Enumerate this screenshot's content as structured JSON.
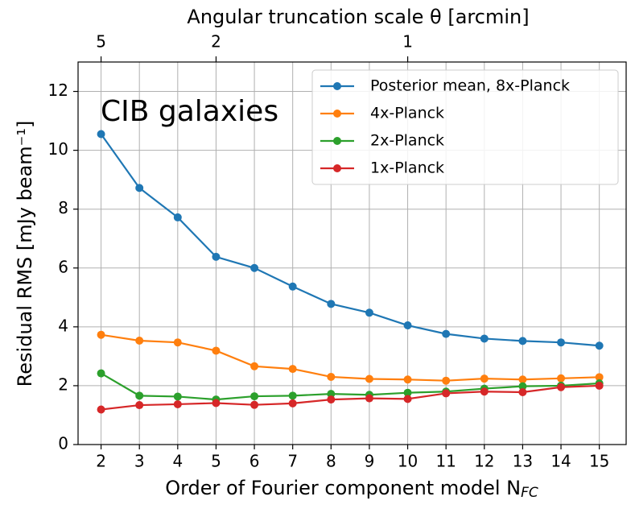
{
  "chart_data": {
    "type": "line",
    "title": "Angular truncation scale θ [arcmin]",
    "xlabel": "Order of Fourier component model N",
    "xlabel_subscript": "FC",
    "ylabel": "Residual RMS [mJy beam⁻¹]",
    "annotation": "CIB galaxies",
    "x": [
      2,
      3,
      4,
      5,
      6,
      7,
      8,
      9,
      10,
      11,
      12,
      13,
      14,
      15
    ],
    "xlim": [
      1.4,
      15.7
    ],
    "xticks": [
      2,
      3,
      4,
      5,
      6,
      7,
      8,
      9,
      10,
      11,
      12,
      13,
      14,
      15
    ],
    "ylim": [
      0,
      13
    ],
    "yticks": [
      0,
      2,
      4,
      6,
      8,
      10,
      12
    ],
    "x2lim": [
      7.143,
      0.637
    ],
    "x2scale": "reciprocal",
    "x2ticks": [
      5,
      2,
      1
    ],
    "grid": true,
    "legend": "upper right",
    "series": [
      {
        "name": "Posterior mean, 8x-Planck",
        "color": "#1f77b4",
        "values": [
          10.55,
          8.72,
          7.72,
          6.38,
          6.0,
          5.37,
          4.78,
          4.48,
          4.05,
          3.76,
          3.6,
          3.52,
          3.47,
          3.36
        ]
      },
      {
        "name": "4x-Planck",
        "color": "#ff7f0e",
        "values": [
          3.73,
          3.53,
          3.47,
          3.19,
          2.66,
          2.57,
          2.3,
          2.23,
          2.21,
          2.17,
          2.24,
          2.21,
          2.25,
          2.29
        ]
      },
      {
        "name": "2x-Planck",
        "color": "#2ca02c",
        "values": [
          2.42,
          1.66,
          1.63,
          1.53,
          1.64,
          1.66,
          1.72,
          1.69,
          1.76,
          1.8,
          1.9,
          1.98,
          2.0,
          2.08
        ]
      },
      {
        "name": "1x-Planck",
        "color": "#d62728",
        "values": [
          1.19,
          1.34,
          1.37,
          1.41,
          1.35,
          1.4,
          1.53,
          1.57,
          1.55,
          1.74,
          1.8,
          1.78,
          1.95,
          2.0
        ]
      }
    ]
  }
}
